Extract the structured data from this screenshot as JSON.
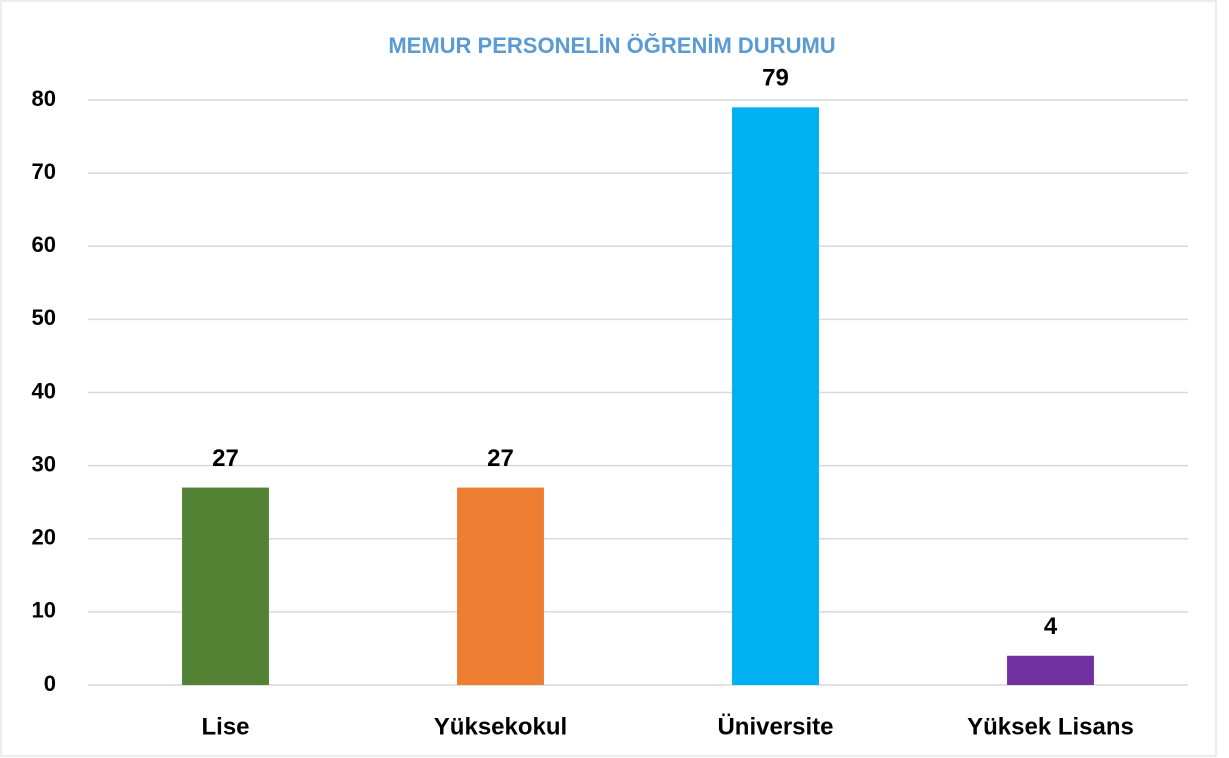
{
  "chart_data": {
    "type": "bar",
    "title": "MEMUR PERSONELİN ÖĞRENİM DURUMU",
    "categories": [
      "Lise",
      "Yüksekokul",
      "Üniversite",
      "Yüksek Lisans"
    ],
    "values": [
      27,
      27,
      79,
      4
    ],
    "colors": [
      "#548235",
      "#ED7D31",
      "#00B0F0",
      "#7030A0"
    ],
    "ylim": [
      0,
      80
    ],
    "yticks": [
      0,
      10,
      20,
      30,
      40,
      50,
      60,
      70,
      80
    ],
    "grid": true
  }
}
